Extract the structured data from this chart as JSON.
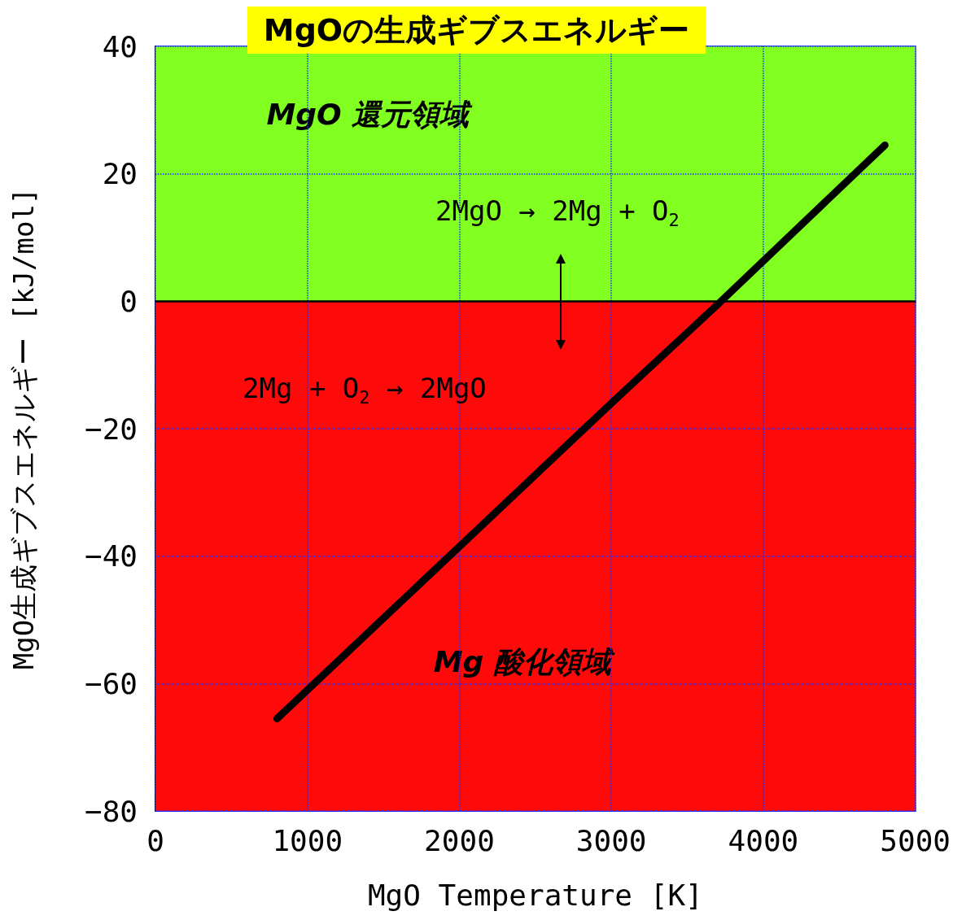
{
  "chart_data": {
    "type": "line",
    "title": "MgOの生成ギブスエネルギー",
    "xlabel": "MgO Temperature [K]",
    "ylabel": "MgO生成ギブスエネルギー [kJ/mol]",
    "x": [
      800,
      2000,
      3000,
      3700,
      4800
    ],
    "series": [
      {
        "color": "#000000",
        "values": [
          -65.5,
          -38.5,
          -16,
          -0.5,
          24.5
        ]
      }
    ],
    "xlim": [
      0,
      5000
    ],
    "xticks": [
      0,
      1000,
      2000,
      3000,
      4000,
      5000
    ],
    "ylim": [
      -80,
      40
    ],
    "yticks": [
      -80,
      -60,
      -40,
      -20,
      0,
      20,
      40
    ],
    "grid": true,
    "line_style": "solid",
    "bands": [
      {
        "axis": "y",
        "from": 0,
        "to": 40,
        "label": "MgO 還元領域",
        "color": "#80ff20"
      },
      {
        "axis": "y",
        "from": -80,
        "to": 0,
        "label": "Mg 酸化領域",
        "color": "#ff0a0a"
      }
    ],
    "ref_lines": [
      {
        "axis": "y",
        "value": 0,
        "color": "#000000"
      }
    ],
    "annotations": [
      "2MgO → 2Mg + O$_{2}$",
      "2Mg + O$_{2}$ → 2MgO"
    ]
  }
}
